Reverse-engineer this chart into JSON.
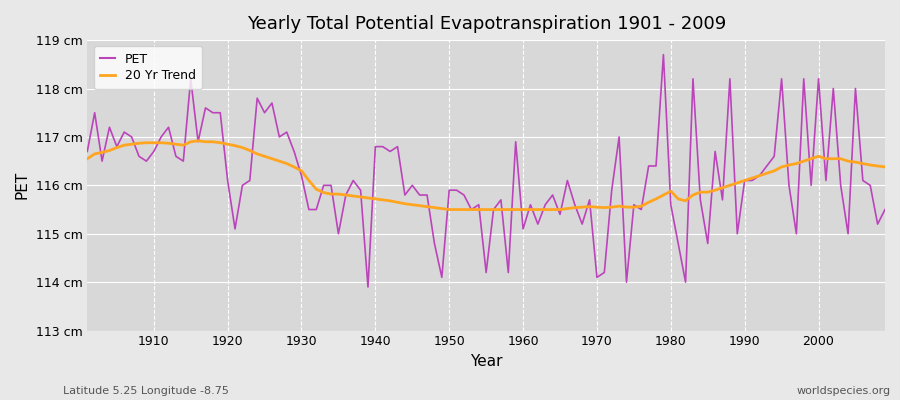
{
  "title": "Yearly Total Potential Evapotranspiration 1901 - 2009",
  "xlabel": "Year",
  "ylabel": "PET",
  "subtitle_left": "Latitude 5.25 Longitude -8.75",
  "subtitle_right": "worldspecies.org",
  "pet_color": "#bb44bb",
  "trend_color": "#ffa520",
  "bg_color": "#e8e8e8",
  "plot_bg_color": "#d8d8d8",
  "grid_color": "#ffffff",
  "ylim": [
    113,
    119
  ],
  "yticks": [
    113,
    114,
    115,
    116,
    117,
    118,
    119
  ],
  "ytick_labels": [
    "113 cm",
    "114 cm",
    "115 cm",
    "116 cm",
    "117 cm",
    "118 cm",
    "119 cm"
  ],
  "years": [
    1901,
    1902,
    1903,
    1904,
    1905,
    1906,
    1907,
    1908,
    1909,
    1910,
    1911,
    1912,
    1913,
    1914,
    1915,
    1916,
    1917,
    1918,
    1919,
    1920,
    1921,
    1922,
    1923,
    1924,
    1925,
    1926,
    1927,
    1928,
    1929,
    1930,
    1931,
    1932,
    1933,
    1934,
    1935,
    1936,
    1937,
    1938,
    1939,
    1940,
    1941,
    1942,
    1943,
    1944,
    1945,
    1946,
    1947,
    1948,
    1949,
    1950,
    1951,
    1952,
    1953,
    1954,
    1955,
    1956,
    1957,
    1958,
    1959,
    1960,
    1961,
    1962,
    1963,
    1964,
    1965,
    1966,
    1967,
    1968,
    1969,
    1970,
    1971,
    1972,
    1973,
    1974,
    1975,
    1976,
    1977,
    1978,
    1979,
    1980,
    1981,
    1982,
    1983,
    1984,
    1985,
    1986,
    1987,
    1988,
    1989,
    1990,
    1991,
    1992,
    1993,
    1994,
    1995,
    1996,
    1997,
    1998,
    1999,
    2000,
    2001,
    2002,
    2003,
    2004,
    2005,
    2006,
    2007,
    2008,
    2009
  ],
  "pet": [
    116.7,
    117.5,
    116.5,
    117.2,
    116.8,
    117.1,
    117.0,
    116.6,
    116.5,
    116.7,
    117.0,
    117.2,
    116.6,
    116.5,
    118.2,
    116.9,
    117.6,
    117.5,
    117.5,
    116.1,
    115.1,
    116.0,
    116.1,
    117.8,
    117.5,
    117.7,
    117.0,
    117.1,
    116.7,
    116.2,
    115.5,
    115.5,
    116.0,
    116.0,
    115.0,
    115.8,
    116.1,
    115.9,
    113.9,
    116.8,
    116.8,
    116.7,
    116.8,
    115.8,
    116.0,
    115.8,
    115.8,
    114.8,
    114.1,
    115.9,
    115.9,
    115.8,
    115.5,
    115.6,
    114.2,
    115.5,
    115.7,
    114.2,
    116.9,
    115.1,
    115.6,
    115.2,
    115.6,
    115.8,
    115.4,
    116.1,
    115.6,
    115.2,
    115.7,
    114.1,
    114.2,
    115.9,
    117.0,
    114.0,
    115.6,
    115.5,
    116.4,
    116.4,
    118.7,
    115.6,
    114.8,
    114.0,
    118.2,
    115.7,
    114.8,
    116.7,
    115.7,
    118.2,
    115.0,
    116.1,
    116.1,
    116.2,
    116.4,
    116.6,
    118.2,
    116.0,
    115.0,
    118.2,
    116.0,
    118.2,
    116.1,
    118.0,
    116.0,
    115.0,
    118.0,
    116.1,
    116.0,
    115.2,
    115.5
  ],
  "trend_years": [
    1901,
    1902,
    1903,
    1904,
    1905,
    1906,
    1907,
    1908,
    1909,
    1910,
    1911,
    1912,
    1913,
    1914,
    1915,
    1916,
    1917,
    1918,
    1919,
    1920,
    1921,
    1922,
    1923,
    1924,
    1925,
    1926,
    1927,
    1928,
    1929,
    1930,
    1931,
    1932,
    1933,
    1934,
    1935,
    1936,
    1937,
    1938,
    1939,
    1940,
    1941,
    1942,
    1943,
    1944,
    1945,
    1946,
    1947,
    1948,
    1949,
    1950,
    1951,
    1952,
    1953,
    1954,
    1955,
    1956,
    1957,
    1958,
    1959,
    1960,
    1961,
    1962,
    1963,
    1964,
    1965,
    1966,
    1967,
    1968,
    1969,
    1970,
    1971,
    1972,
    1973,
    1974,
    1975,
    1976,
    1977,
    1978,
    1979,
    1980,
    1981,
    1982,
    1983,
    1984,
    1985,
    1986,
    1987,
    1988,
    1989,
    1990,
    1991,
    1992,
    1993,
    1994,
    1995,
    1996,
    1997,
    1998,
    1999,
    2000,
    2001,
    2002,
    2003,
    2004,
    2005,
    2006,
    2007,
    2008,
    2009
  ],
  "trend": [
    116.55,
    116.65,
    116.68,
    116.72,
    116.78,
    116.83,
    116.85,
    116.87,
    116.88,
    116.88,
    116.88,
    116.87,
    116.85,
    116.83,
    116.9,
    116.92,
    116.9,
    116.9,
    116.88,
    116.85,
    116.82,
    116.78,
    116.72,
    116.65,
    116.6,
    116.55,
    116.5,
    116.45,
    116.38,
    116.3,
    116.1,
    115.92,
    115.85,
    115.82,
    115.82,
    115.8,
    115.78,
    115.76,
    115.74,
    115.72,
    115.7,
    115.68,
    115.65,
    115.62,
    115.6,
    115.58,
    115.56,
    115.54,
    115.52,
    115.5,
    115.5,
    115.5,
    115.5,
    115.5,
    115.5,
    115.5,
    115.5,
    115.5,
    115.5,
    115.5,
    115.5,
    115.5,
    115.5,
    115.5,
    115.5,
    115.52,
    115.54,
    115.55,
    115.56,
    115.55,
    115.54,
    115.55,
    115.57,
    115.55,
    115.55,
    115.57,
    115.65,
    115.72,
    115.8,
    115.88,
    115.72,
    115.68,
    115.8,
    115.86,
    115.86,
    115.9,
    115.95,
    116.0,
    116.05,
    116.1,
    116.15,
    116.2,
    116.25,
    116.3,
    116.38,
    116.42,
    116.45,
    116.5,
    116.55,
    116.6,
    116.55,
    116.55,
    116.55,
    116.5,
    116.48,
    116.45,
    116.42,
    116.4,
    116.38
  ]
}
